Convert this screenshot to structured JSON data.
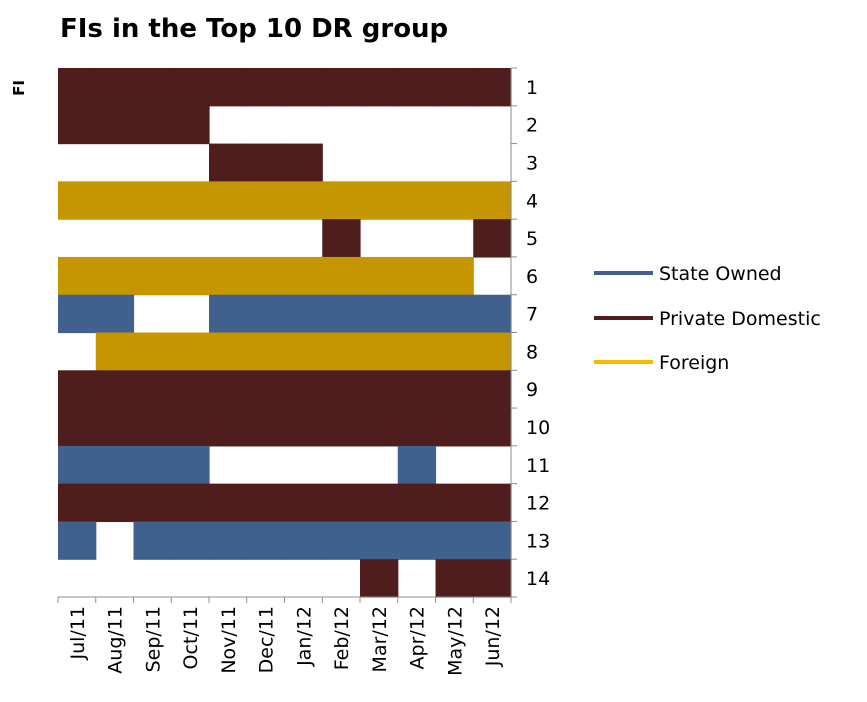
{
  "chart_data": {
    "type": "heatmap",
    "title": "FIs in the Top 10 DR group",
    "ylabel": "FI",
    "xlabel": "",
    "x": [
      "Jul/11",
      "Aug/11",
      "Sep/11",
      "Oct/11",
      "Nov/11",
      "Dec/11",
      "Jan/12",
      "Feb/12",
      "Mar/12",
      "Apr/12",
      "May/12",
      "Jun/12"
    ],
    "y": [
      "1",
      "2",
      "3",
      "4",
      "5",
      "6",
      "7",
      "8",
      "9",
      "10",
      "11",
      "12",
      "13",
      "14"
    ],
    "categories": [
      "State Owned",
      "Private Domestic",
      "Foreign"
    ],
    "colors": {
      "State Owned": "#40618E",
      "Private Domestic": "#4E1D1C",
      "Foreign": "#C59600",
      "Foreign_legend": "#F5BC00"
    },
    "legend_position": "right",
    "grid": false,
    "membership": [
      {
        "fi": "1",
        "type": "Private Domestic",
        "months": [
          1,
          1,
          1,
          1,
          1,
          1,
          1,
          1,
          1,
          1,
          1,
          1
        ]
      },
      {
        "fi": "2",
        "type": "Private Domestic",
        "months": [
          1,
          1,
          1,
          1,
          0,
          0,
          0,
          0,
          0,
          0,
          0,
          0
        ]
      },
      {
        "fi": "3",
        "type": "Private Domestic",
        "months": [
          0,
          0,
          0,
          0,
          1,
          1,
          1,
          0,
          0,
          0,
          0,
          0
        ]
      },
      {
        "fi": "4",
        "type": "Foreign",
        "months": [
          1,
          1,
          1,
          1,
          1,
          1,
          1,
          1,
          1,
          1,
          1,
          1
        ]
      },
      {
        "fi": "5",
        "type": "Private Domestic",
        "months": [
          0,
          0,
          0,
          0,
          0,
          0,
          0,
          1,
          0,
          0,
          0,
          1
        ]
      },
      {
        "fi": "6",
        "type": "Foreign",
        "months": [
          1,
          1,
          1,
          1,
          1,
          1,
          1,
          1,
          1,
          1,
          1,
          0
        ]
      },
      {
        "fi": "7",
        "type": "State Owned",
        "months": [
          1,
          1,
          0,
          0,
          1,
          1,
          1,
          1,
          1,
          1,
          1,
          1
        ]
      },
      {
        "fi": "8",
        "type": "Foreign",
        "months": [
          0,
          1,
          1,
          1,
          1,
          1,
          1,
          1,
          1,
          1,
          1,
          1
        ]
      },
      {
        "fi": "9",
        "type": "Private Domestic",
        "months": [
          1,
          1,
          1,
          1,
          1,
          1,
          1,
          1,
          1,
          1,
          1,
          1
        ]
      },
      {
        "fi": "10",
        "type": "Private Domestic",
        "months": [
          1,
          1,
          1,
          1,
          1,
          1,
          1,
          1,
          1,
          1,
          1,
          1
        ]
      },
      {
        "fi": "11",
        "type": "State Owned",
        "months": [
          1,
          1,
          1,
          1,
          0,
          0,
          0,
          0,
          0,
          1,
          0,
          0
        ]
      },
      {
        "fi": "12",
        "type": "Private Domestic",
        "months": [
          1,
          1,
          1,
          1,
          1,
          1,
          1,
          1,
          1,
          1,
          1,
          1
        ]
      },
      {
        "fi": "13",
        "type": "State Owned",
        "months": [
          1,
          0,
          1,
          1,
          1,
          1,
          1,
          1,
          1,
          1,
          1,
          1
        ]
      },
      {
        "fi": "14",
        "type": "Private Domestic",
        "months": [
          0,
          0,
          0,
          0,
          0,
          0,
          0,
          0,
          1,
          0,
          1,
          1
        ]
      }
    ]
  }
}
